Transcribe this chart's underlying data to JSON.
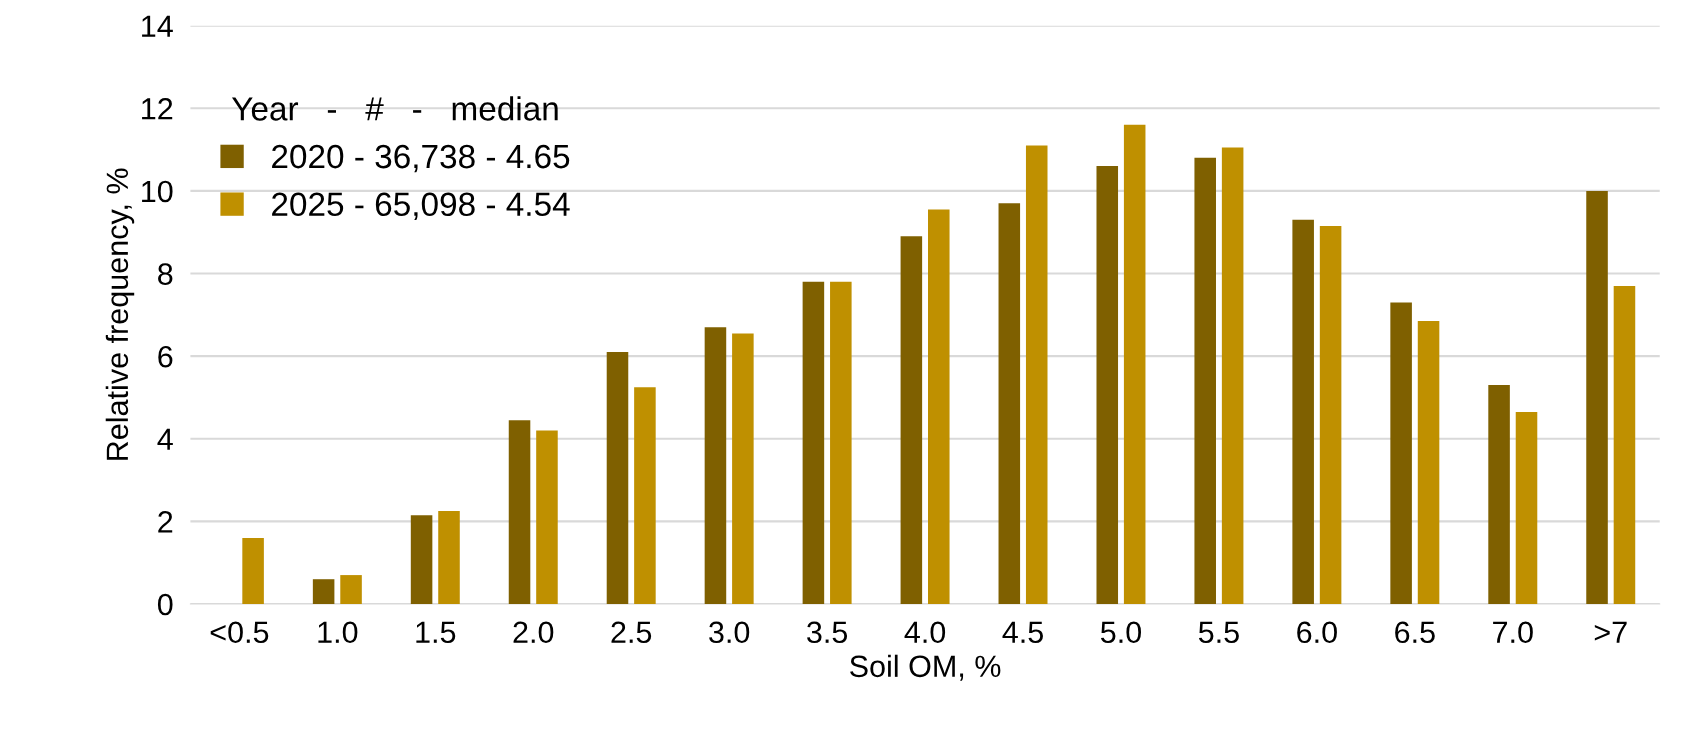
{
  "chart_data": {
    "type": "bar",
    "xlabel": "Soil OM, %",
    "ylabel": "Relative frequency, %",
    "legend_title": "Year   -   #   -   median",
    "categories": [
      "<0.5",
      "1.0",
      "1.5",
      "2.0",
      "2.5",
      "3.0",
      "3.5",
      "4.0",
      "4.5",
      "5.0",
      "5.5",
      "6.0",
      "6.5",
      "7.0",
      ">7"
    ],
    "series": [
      {
        "name": "2020 - 36,738 - 4.65",
        "color": "#7f6000",
        "values": [
          null,
          0.6,
          2.15,
          4.45,
          6.1,
          6.7,
          7.8,
          8.9,
          9.7,
          10.6,
          10.8,
          9.3,
          7.3,
          5.3,
          10.0
        ]
      },
      {
        "name": "2025 - 65,098 - 4.54",
        "color": "#bf9000",
        "values": [
          1.6,
          0.7,
          2.25,
          4.2,
          5.25,
          6.55,
          7.8,
          9.55,
          11.1,
          11.6,
          11.05,
          9.15,
          6.85,
          4.65,
          7.7
        ]
      }
    ],
    "ylim": [
      0,
      14
    ],
    "yticks": [
      0,
      2,
      4,
      6,
      8,
      10,
      12,
      14
    ],
    "grid": "y",
    "legend": "top left"
  }
}
